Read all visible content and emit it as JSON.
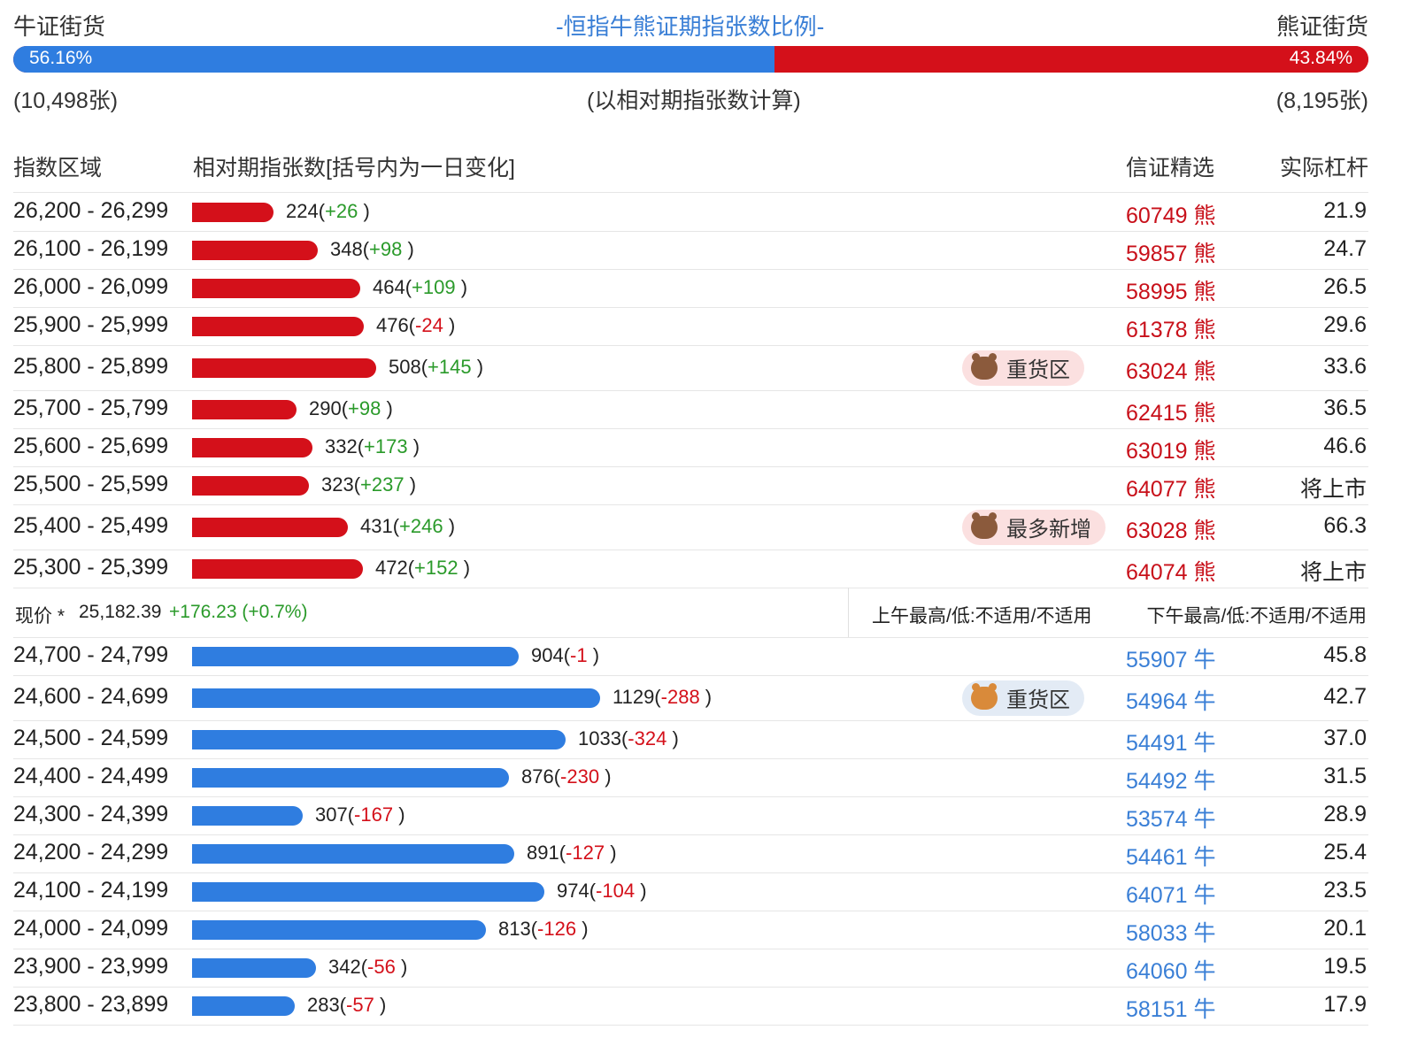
{
  "header": {
    "bull_title": "牛证街货",
    "center_title": "-恒指牛熊证期指张数比例-",
    "bear_title": "熊证街货",
    "bull_pct": "56.16%",
    "bear_pct": "43.84%",
    "bull_ratio": 0.5616,
    "bull_count": "(10,498张)",
    "note": "(以相对期指张数计算)",
    "bear_count": "(8,195张)",
    "colors": {
      "bull": "#2f7de0",
      "bear": "#d4101a",
      "up": "#2a9a2a",
      "down": "#d4101a"
    }
  },
  "columns": {
    "range": "指数区域",
    "count": "相对期指张数",
    "count_note": "[括号内为一日变化]",
    "code": "信证精选",
    "leverage": "实际杠杆"
  },
  "bear_rows": [
    {
      "range": "26,200 - 26,299",
      "count": 224,
      "count_text": "224(",
      "change": "+26",
      "code": "60749 熊",
      "leverage": "21.9"
    },
    {
      "range": "26,100 - 26,199",
      "count": 348,
      "count_text": "348(",
      "change": "+98",
      "code": "59857 熊",
      "leverage": "24.7"
    },
    {
      "range": "26,000 - 26,099",
      "count": 464,
      "count_text": "464(",
      "change": "+109",
      "code": "58995 熊",
      "leverage": "26.5"
    },
    {
      "range": "25,900 - 25,999",
      "count": 476,
      "count_text": "476(",
      "change": "-24",
      "code": "61378 熊",
      "leverage": "29.6"
    },
    {
      "range": "25,800 - 25,899",
      "count": 508,
      "count_text": "508(",
      "change": "+145",
      "code": "63024 熊",
      "leverage": "33.6",
      "badge": "重货区"
    },
    {
      "range": "25,700 - 25,799",
      "count": 290,
      "count_text": "290(",
      "change": "+98",
      "code": "62415 熊",
      "leverage": "36.5"
    },
    {
      "range": "25,600 - 25,699",
      "count": 332,
      "count_text": "332(",
      "change": "+173",
      "code": "63019 熊",
      "leverage": "46.6"
    },
    {
      "range": "25,500 - 25,599",
      "count": 323,
      "count_text": "323(",
      "change": "+237",
      "code": "64077 熊",
      "leverage": "将上市"
    },
    {
      "range": "25,400 - 25,499",
      "count": 431,
      "count_text": "431(",
      "change": "+246",
      "code": "63028 熊",
      "leverage": "66.3",
      "badge": "最多新增"
    },
    {
      "range": "25,300 - 25,399",
      "count": 472,
      "count_text": "472(",
      "change": "+152",
      "code": "64074 熊",
      "leverage": "将上市"
    }
  ],
  "price": {
    "label": "现价 *",
    "value": "25,182.39",
    "change": "+176.23 (+0.7%)",
    "am": "上午最高/低:不适用/不适用",
    "pm": "下午最高/低:不适用/不适用"
  },
  "bull_rows": [
    {
      "range": "24,700 - 24,799",
      "count": 904,
      "count_text": "904(",
      "change": "-1",
      "code": "55907 牛",
      "leverage": "45.8"
    },
    {
      "range": "24,600 - 24,699",
      "count": 1129,
      "count_text": "1129(",
      "change": "-288",
      "code": "54964 牛",
      "leverage": "42.7",
      "badge": "重货区"
    },
    {
      "range": "24,500 - 24,599",
      "count": 1033,
      "count_text": "1033(",
      "change": "-324",
      "code": "54491 牛",
      "leverage": "37.0"
    },
    {
      "range": "24,400 - 24,499",
      "count": 876,
      "count_text": "876(",
      "change": "-230",
      "code": "54492 牛",
      "leverage": "31.5"
    },
    {
      "range": "24,300 - 24,399",
      "count": 307,
      "count_text": "307(",
      "change": "-167",
      "code": "53574 牛",
      "leverage": "28.9"
    },
    {
      "range": "24,200 - 24,299",
      "count": 891,
      "count_text": "891(",
      "change": "-127",
      "code": "54461 牛",
      "leverage": "25.4"
    },
    {
      "range": "24,100 - 24,199",
      "count": 974,
      "count_text": "974(",
      "change": "-104",
      "code": "64071 牛",
      "leverage": "23.5"
    },
    {
      "range": "24,000 - 24,099",
      "count": 813,
      "count_text": "813(",
      "change": "-126",
      "code": "58033 牛",
      "leverage": "20.1"
    },
    {
      "range": "23,900 - 23,999",
      "count": 342,
      "count_text": "342(",
      "change": "-56",
      "code": "64060 牛",
      "leverage": "19.5"
    },
    {
      "range": "23,800 - 23,899",
      "count": 283,
      "count_text": "283(",
      "change": "-57",
      "code": "58151 牛",
      "leverage": "17.9"
    }
  ]
}
